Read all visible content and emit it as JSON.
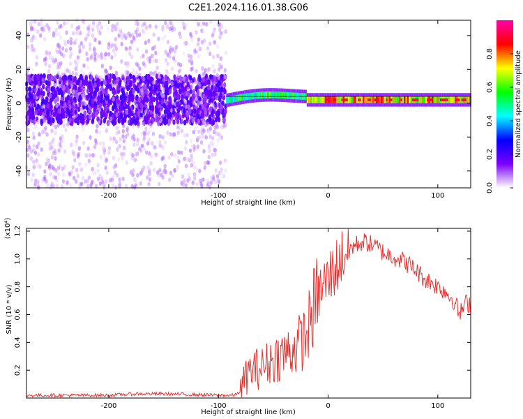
{
  "title": "C2E1.2024.116.01.38.G06",
  "chart_data": [
    {
      "type": "heatmap",
      "xlabel": "Height of straight line (km)",
      "ylabel": "Frequency (Hz)",
      "xlim": [
        -275,
        130
      ],
      "ylim": [
        -50,
        49
      ],
      "x_ticks": [
        -200,
        -100,
        0,
        100
      ],
      "y_ticks": [
        -40,
        -20,
        0,
        20,
        40
      ],
      "colorbar": {
        "label": "Normalized spectral amplitude",
        "range": [
          0,
          1
        ],
        "ticks": [
          "0.0",
          "0.2",
          "0.4",
          "0.6",
          "0.8"
        ],
        "colors": [
          "#ffffff",
          "#7b00ff",
          "#0000ff",
          "#00ffff",
          "#00ff00",
          "#ffff00",
          "#ff0000",
          "#ff00aa"
        ]
      },
      "regions": [
        {
          "x_range": [
            -275,
            -93
          ],
          "description_level": "noisy",
          "core_freq_hz": [
            -10,
            10
          ],
          "core_amplitude": 0.15,
          "background_amplitude": 0.05
        },
        {
          "x_range": [
            -93,
            130
          ],
          "description_level": "coherent",
          "line_freq_hz": 2,
          "core_amplitude": 0.9
        }
      ],
      "grid": false
    },
    {
      "type": "line",
      "xlabel": "Height of straight line (km)",
      "ylabel": "SNR (10 * v/v)",
      "y_multiplier": "(x10⁴)",
      "xlim": [
        -275,
        130
      ],
      "ylim": [
        0,
        1.22
      ],
      "x_ticks": [
        -200,
        -100,
        0,
        100
      ],
      "y_ticks": [
        "0.2",
        "0.4",
        "0.6",
        "0.8",
        "1.0",
        "1.2"
      ],
      "color": "#e8312f",
      "series": [
        {
          "name": "",
          "x": [
            -275,
            -250,
            -225,
            -200,
            -175,
            -150,
            -125,
            -100,
            -85,
            -80,
            -75,
            -70,
            -60,
            -50,
            -40,
            -30,
            -20,
            -15,
            -10,
            -5,
            0,
            5,
            10,
            15,
            20,
            25,
            30,
            35,
            40,
            45,
            50,
            55,
            60,
            65,
            70,
            75,
            80,
            85,
            90,
            95,
            100,
            105,
            110,
            115,
            120,
            125,
            130
          ],
          "values": [
            0.02,
            0.02,
            0.02,
            0.02,
            0.03,
            0.03,
            0.025,
            0.02,
            0.02,
            0.05,
            0.15,
            0.2,
            0.22,
            0.28,
            0.32,
            0.36,
            0.45,
            0.6,
            0.72,
            0.8,
            0.85,
            0.92,
            0.98,
            1.05,
            1.08,
            1.1,
            1.12,
            1.12,
            1.1,
            1.08,
            1.05,
            1.03,
            1.02,
            1.0,
            0.98,
            0.95,
            0.92,
            0.88,
            0.85,
            0.83,
            0.8,
            0.78,
            0.74,
            0.7,
            0.6,
            0.68,
            0.68
          ]
        }
      ],
      "grid": false
    }
  ]
}
